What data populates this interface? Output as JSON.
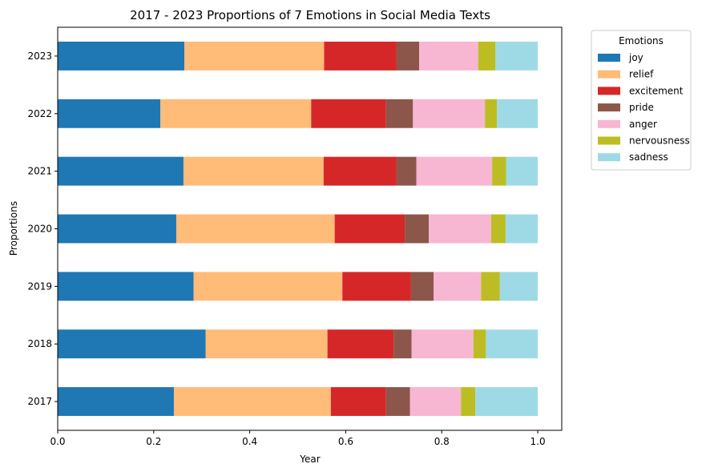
{
  "chart_data": {
    "type": "bar",
    "orientation": "horizontal",
    "stacked": true,
    "title": "2017 - 2023 Proportions of 7 Emotions in Social Media Texts",
    "xlabel": "Year",
    "ylabel": "Proportions",
    "xlim": [
      0,
      1.05
    ],
    "x_ticks": [
      0.0,
      0.2,
      0.4,
      0.6,
      0.8,
      1.0
    ],
    "x_tick_labels": [
      "0.0",
      "0.2",
      "0.4",
      "0.6",
      "0.8",
      "1.0"
    ],
    "grid": false,
    "legend": {
      "title": "Emotions",
      "placement": "outside-top-right"
    },
    "categories": [
      "2017",
      "2018",
      "2019",
      "2020",
      "2021",
      "2022",
      "2023"
    ],
    "series": [
      {
        "name": "joy",
        "color": "#1f77b4",
        "values": [
          0.242,
          0.308,
          0.283,
          0.247,
          0.262,
          0.214,
          0.264
        ]
      },
      {
        "name": "relief",
        "color": "#ffbb78",
        "values": [
          0.327,
          0.254,
          0.31,
          0.33,
          0.292,
          0.314,
          0.291
        ]
      },
      {
        "name": "excitement",
        "color": "#d62728",
        "values": [
          0.115,
          0.138,
          0.143,
          0.146,
          0.152,
          0.156,
          0.151
        ]
      },
      {
        "name": "pride",
        "color": "#8c564b",
        "values": [
          0.05,
          0.037,
          0.047,
          0.05,
          0.041,
          0.056,
          0.047
        ]
      },
      {
        "name": "anger",
        "color": "#f7b6d2",
        "values": [
          0.106,
          0.129,
          0.099,
          0.13,
          0.158,
          0.15,
          0.123
        ]
      },
      {
        "name": "nervousness",
        "color": "#bcbd22",
        "values": [
          0.03,
          0.026,
          0.039,
          0.03,
          0.029,
          0.025,
          0.036
        ]
      },
      {
        "name": "sadness",
        "color": "#9edae5",
        "values": [
          0.13,
          0.108,
          0.079,
          0.067,
          0.066,
          0.085,
          0.088
        ]
      }
    ]
  }
}
